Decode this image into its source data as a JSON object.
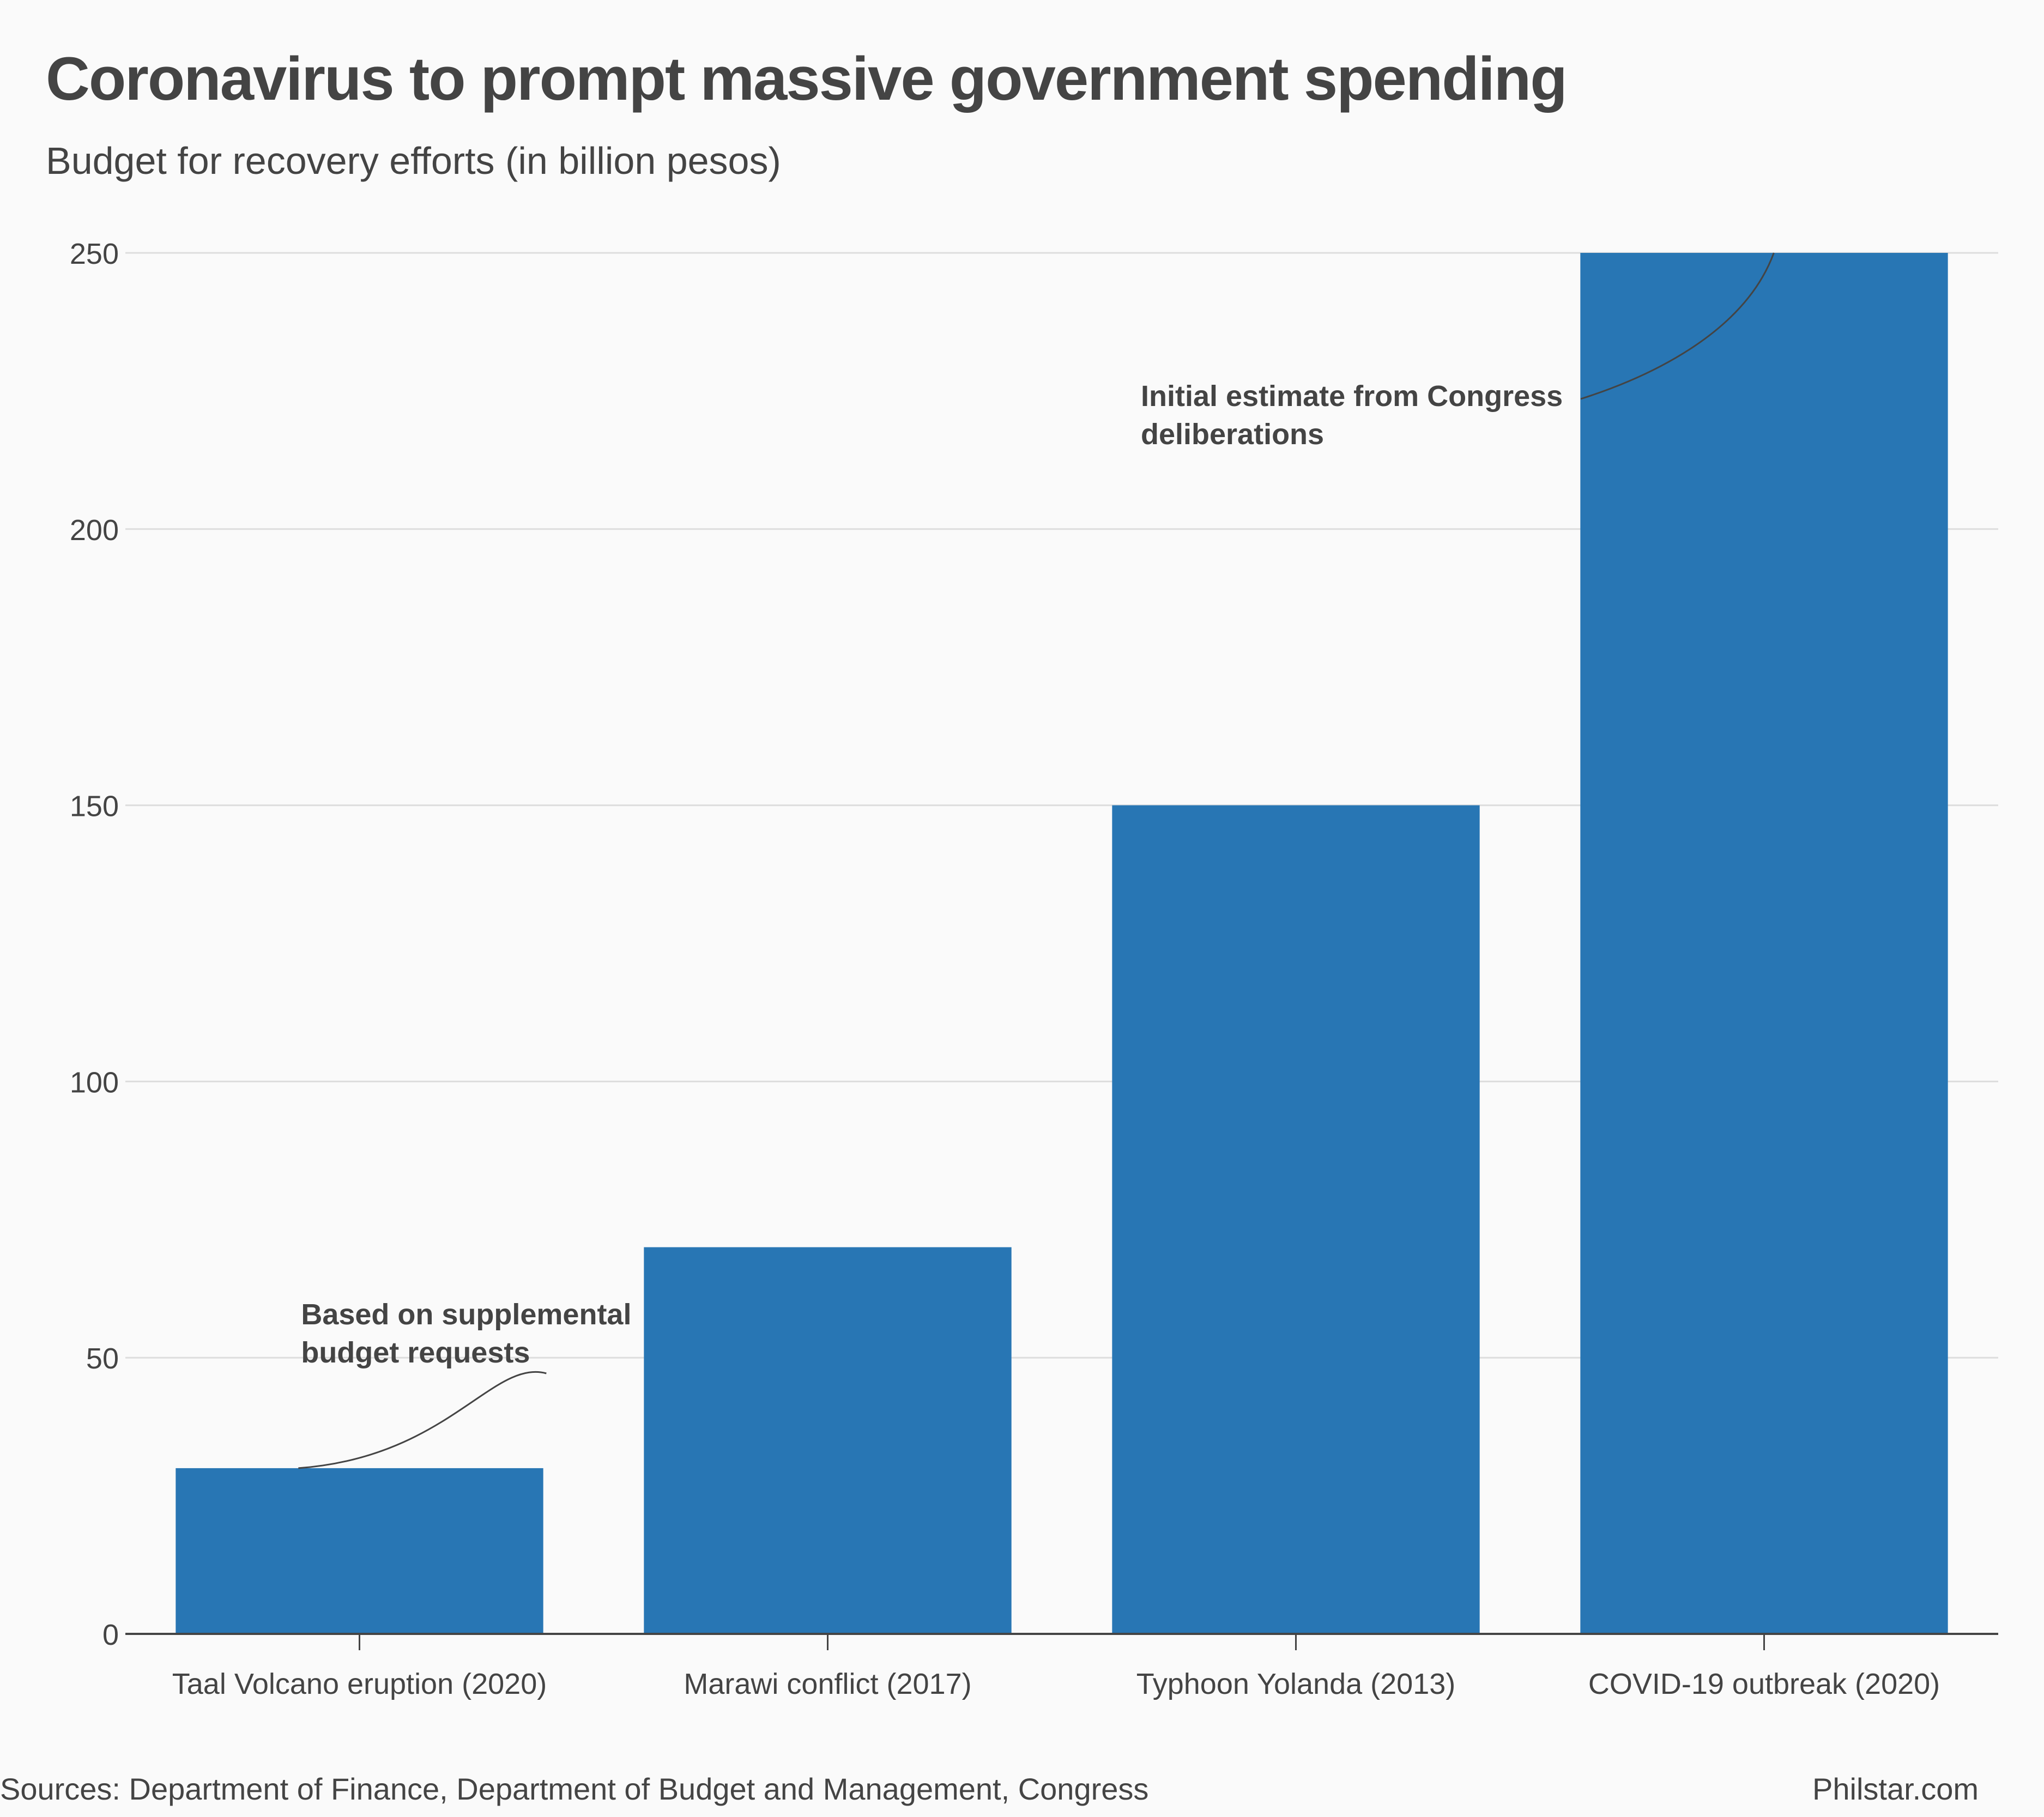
{
  "chart_data": {
    "type": "bar",
    "title": "Coronavirus to prompt massive government spending",
    "subtitle": "Budget for recovery efforts (in billion pesos)",
    "categories": [
      "Taal Volcano eruption (2020)",
      "Marawi conflict (2017)",
      "Typhoon Yolanda (2013)",
      "COVID-19 outbreak (2020)"
    ],
    "values": [
      30,
      70,
      150,
      250
    ],
    "ylim": [
      0,
      250
    ],
    "yticks": [
      0,
      50,
      100,
      150,
      200,
      250
    ],
    "xlabel": "",
    "ylabel": "",
    "grid": true,
    "bar_color": "#2876b4",
    "annotations": [
      {
        "category_index": 0,
        "lines": [
          "Based on supplemental",
          "budget requests"
        ]
      },
      {
        "category_index": 3,
        "lines": [
          "Initial estimate from Congress",
          "deliberations"
        ]
      }
    ]
  },
  "footer": {
    "source": "Sources: Department of Finance, Department of Budget and Management, Congress",
    "brand": "Philstar.com"
  }
}
